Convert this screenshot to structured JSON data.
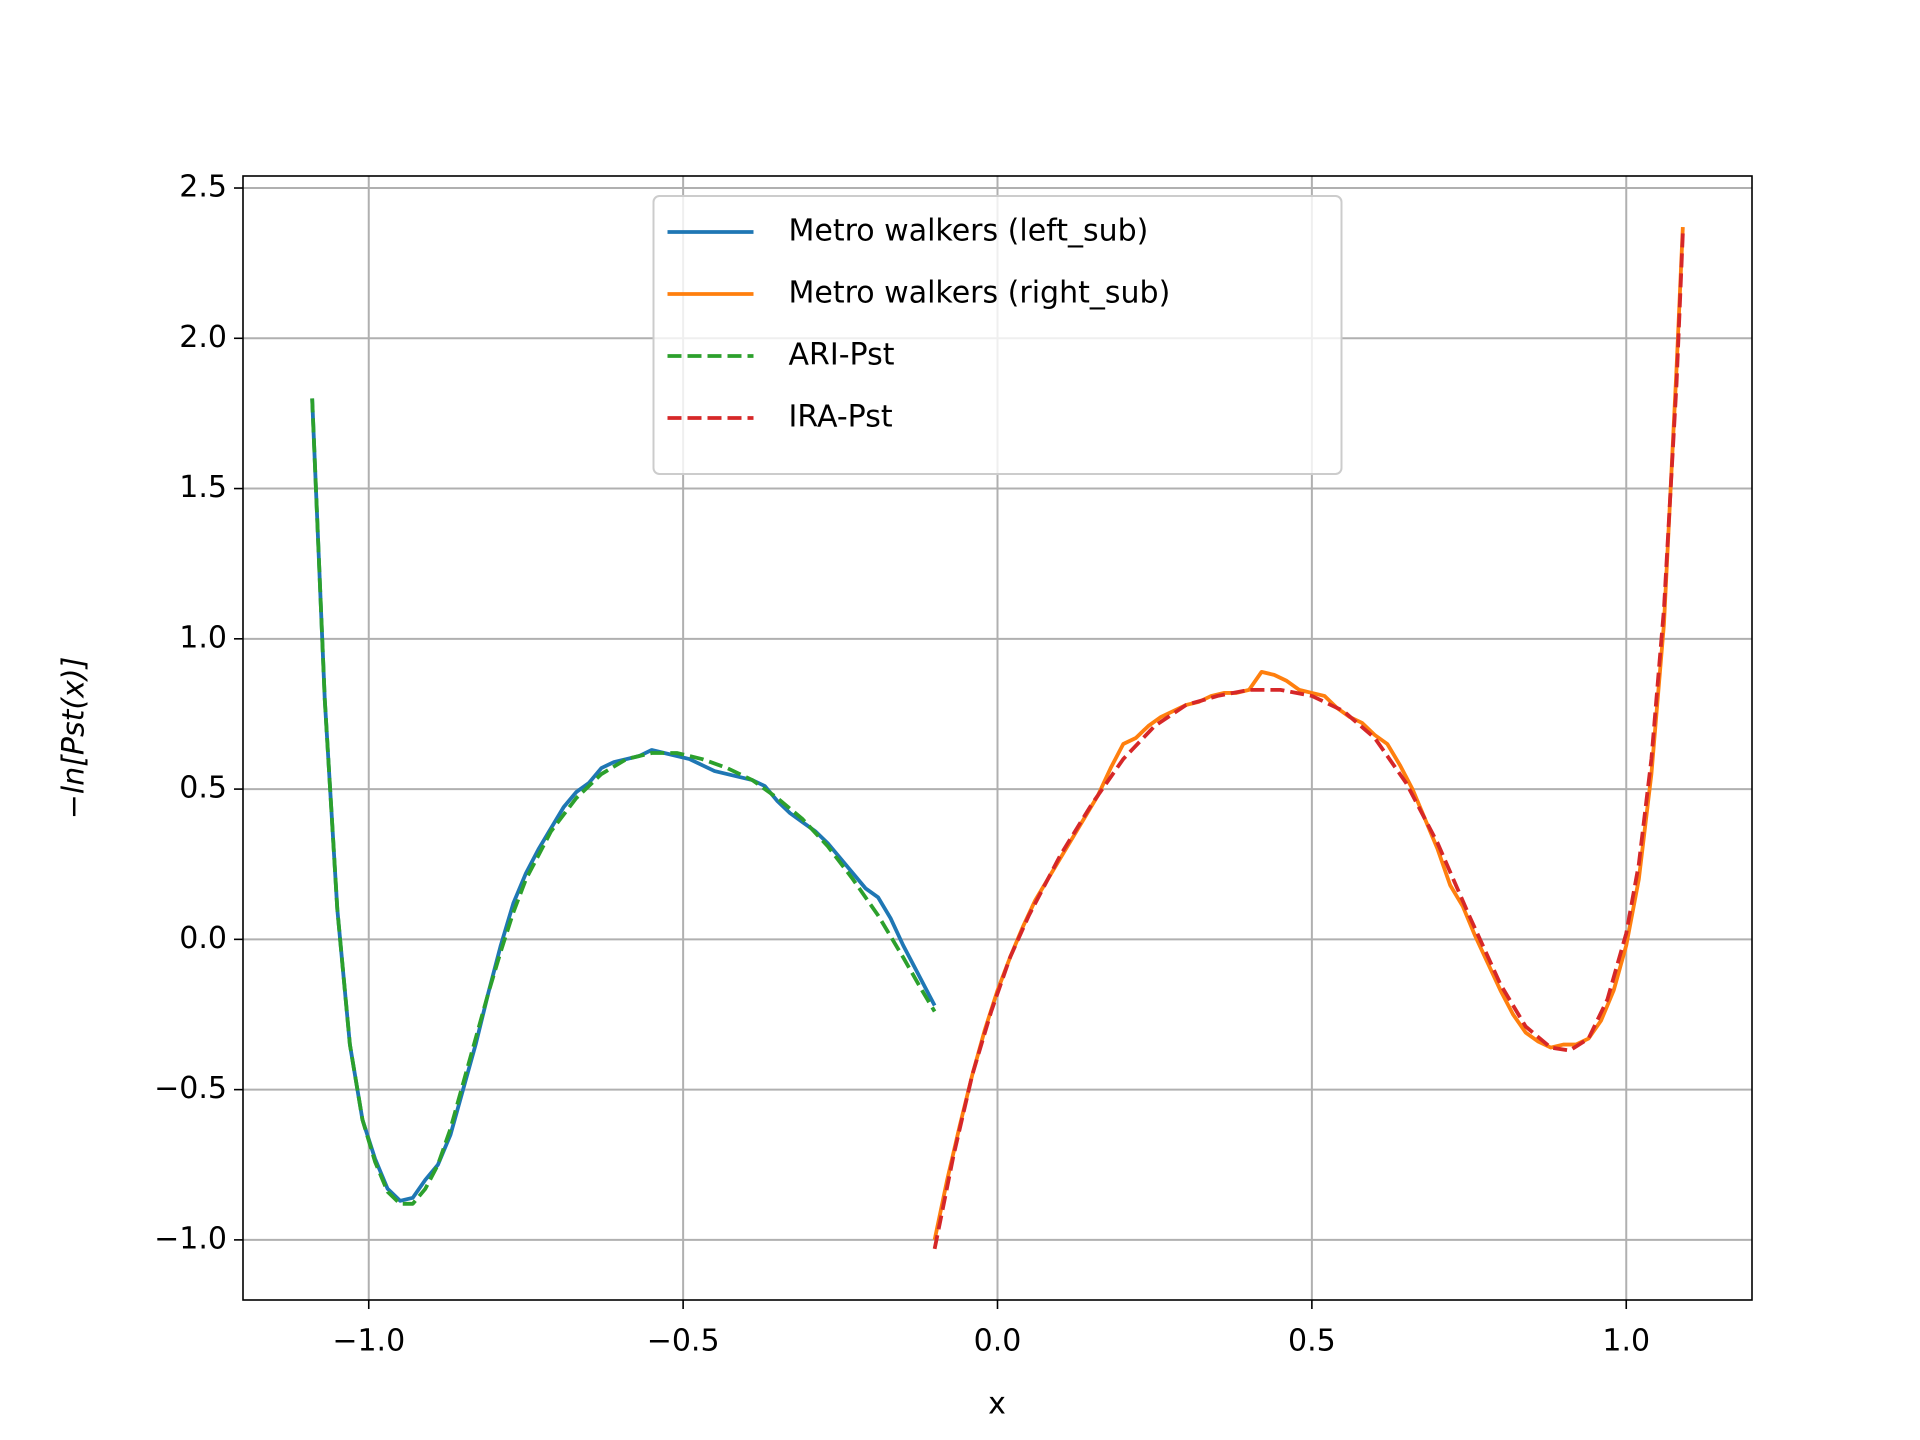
{
  "chart_data": {
    "type": "line",
    "xlabel": "x",
    "ylabel": "−ln[Pst(x)]",
    "xlim": [
      -1.2,
      1.2
    ],
    "ylim": [
      -1.2,
      2.54
    ],
    "xticks": [
      {
        "value": -1.0,
        "label": "−1.0"
      },
      {
        "value": -0.5,
        "label": "−0.5"
      },
      {
        "value": 0.0,
        "label": "0.0"
      },
      {
        "value": 0.5,
        "label": "0.5"
      },
      {
        "value": 1.0,
        "label": "1.0"
      }
    ],
    "yticks": [
      {
        "value": -1.0,
        "label": "−1.0"
      },
      {
        "value": -0.5,
        "label": "−0.5"
      },
      {
        "value": 0.0,
        "label": "0.0"
      },
      0.5,
      {
        "value": 1.0,
        "label": "1.0"
      },
      1.5,
      {
        "value": 2.0,
        "label": "2.0"
      },
      2.5
    ],
    "grid": true,
    "legend": "upper center",
    "series": [
      {
        "name": "Metro walkers (left_sub)",
        "color": "#1f77b4",
        "linestyle": "solid",
        "x": [
          -1.09,
          -1.07,
          -1.05,
          -1.03,
          -1.01,
          -0.99,
          -0.97,
          -0.95,
          -0.93,
          -0.91,
          -0.89,
          -0.87,
          -0.85,
          -0.83,
          -0.81,
          -0.79,
          -0.77,
          -0.75,
          -0.73,
          -0.71,
          -0.69,
          -0.67,
          -0.65,
          -0.63,
          -0.61,
          -0.59,
          -0.57,
          -0.55,
          -0.53,
          -0.51,
          -0.49,
          -0.47,
          -0.45,
          -0.43,
          -0.41,
          -0.39,
          -0.37,
          -0.35,
          -0.33,
          -0.31,
          -0.29,
          -0.27,
          -0.25,
          -0.23,
          -0.21,
          -0.19,
          -0.17,
          -0.15,
          -0.13,
          -0.11,
          -0.1
        ],
        "values": [
          1.8,
          0.8,
          0.1,
          -0.35,
          -0.6,
          -0.73,
          -0.83,
          -0.87,
          -0.86,
          -0.8,
          -0.75,
          -0.65,
          -0.5,
          -0.35,
          -0.18,
          -0.02,
          0.12,
          0.22,
          0.3,
          0.37,
          0.44,
          0.49,
          0.52,
          0.57,
          0.59,
          0.6,
          0.61,
          0.63,
          0.62,
          0.61,
          0.6,
          0.58,
          0.56,
          0.55,
          0.54,
          0.53,
          0.51,
          0.46,
          0.42,
          0.39,
          0.36,
          0.32,
          0.27,
          0.22,
          0.17,
          0.14,
          0.07,
          -0.02,
          -0.1,
          -0.18,
          -0.22
        ]
      },
      {
        "name": "Metro walkers (right_sub)",
        "color": "#ff7f0e",
        "linestyle": "solid",
        "x": [
          -0.1,
          -0.08,
          -0.06,
          -0.04,
          -0.02,
          0.0,
          0.02,
          0.04,
          0.06,
          0.08,
          0.1,
          0.12,
          0.14,
          0.16,
          0.18,
          0.2,
          0.22,
          0.24,
          0.26,
          0.28,
          0.3,
          0.32,
          0.34,
          0.36,
          0.38,
          0.4,
          0.42,
          0.44,
          0.46,
          0.48,
          0.5,
          0.52,
          0.54,
          0.56,
          0.58,
          0.6,
          0.62,
          0.64,
          0.66,
          0.68,
          0.7,
          0.72,
          0.74,
          0.76,
          0.78,
          0.8,
          0.82,
          0.84,
          0.86,
          0.88,
          0.9,
          0.92,
          0.94,
          0.96,
          0.98,
          1.0,
          1.02,
          1.04,
          1.06,
          1.08,
          1.09
        ],
        "values": [
          -1.0,
          -0.8,
          -0.62,
          -0.45,
          -0.3,
          -0.17,
          -0.06,
          0.04,
          0.13,
          0.2,
          0.27,
          0.34,
          0.41,
          0.48,
          0.57,
          0.65,
          0.67,
          0.71,
          0.74,
          0.76,
          0.78,
          0.79,
          0.81,
          0.82,
          0.82,
          0.83,
          0.89,
          0.88,
          0.86,
          0.83,
          0.82,
          0.81,
          0.77,
          0.74,
          0.72,
          0.68,
          0.65,
          0.58,
          0.5,
          0.4,
          0.3,
          0.18,
          0.11,
          0.01,
          -0.08,
          -0.17,
          -0.25,
          -0.31,
          -0.34,
          -0.36,
          -0.35,
          -0.35,
          -0.33,
          -0.27,
          -0.17,
          -0.02,
          0.2,
          0.55,
          1.05,
          1.9,
          2.37
        ]
      },
      {
        "name": "ARI-Pst",
        "color": "#2ca02c",
        "linestyle": "dashed",
        "x": [
          -1.09,
          -1.07,
          -1.05,
          -1.03,
          -1.01,
          -0.99,
          -0.97,
          -0.95,
          -0.93,
          -0.91,
          -0.89,
          -0.87,
          -0.85,
          -0.83,
          -0.81,
          -0.79,
          -0.77,
          -0.75,
          -0.71,
          -0.67,
          -0.63,
          -0.59,
          -0.55,
          -0.51,
          -0.47,
          -0.43,
          -0.39,
          -0.35,
          -0.31,
          -0.27,
          -0.23,
          -0.19,
          -0.15,
          -0.12,
          -0.1
        ],
        "values": [
          1.8,
          0.8,
          0.1,
          -0.35,
          -0.6,
          -0.74,
          -0.84,
          -0.88,
          -0.88,
          -0.83,
          -0.75,
          -0.63,
          -0.48,
          -0.33,
          -0.18,
          -0.04,
          0.09,
          0.2,
          0.36,
          0.47,
          0.55,
          0.6,
          0.62,
          0.62,
          0.6,
          0.57,
          0.53,
          0.47,
          0.4,
          0.31,
          0.2,
          0.08,
          -0.06,
          -0.17,
          -0.24
        ]
      },
      {
        "name": "IRA-Pst",
        "color": "#d62728",
        "linestyle": "dashed",
        "x": [
          -0.1,
          -0.07,
          -0.04,
          -0.01,
          0.02,
          0.05,
          0.1,
          0.15,
          0.2,
          0.25,
          0.3,
          0.35,
          0.4,
          0.45,
          0.5,
          0.55,
          0.6,
          0.65,
          0.7,
          0.75,
          0.8,
          0.84,
          0.88,
          0.91,
          0.94,
          0.97,
          1.0,
          1.02,
          1.04,
          1.06,
          1.08,
          1.09
        ],
        "values": [
          -1.03,
          -0.72,
          -0.45,
          -0.24,
          -0.06,
          0.08,
          0.28,
          0.45,
          0.6,
          0.71,
          0.78,
          0.81,
          0.83,
          0.83,
          0.81,
          0.76,
          0.67,
          0.52,
          0.32,
          0.08,
          -0.15,
          -0.29,
          -0.36,
          -0.37,
          -0.33,
          -0.2,
          0.02,
          0.25,
          0.6,
          1.1,
          1.85,
          2.35
        ]
      }
    ]
  }
}
